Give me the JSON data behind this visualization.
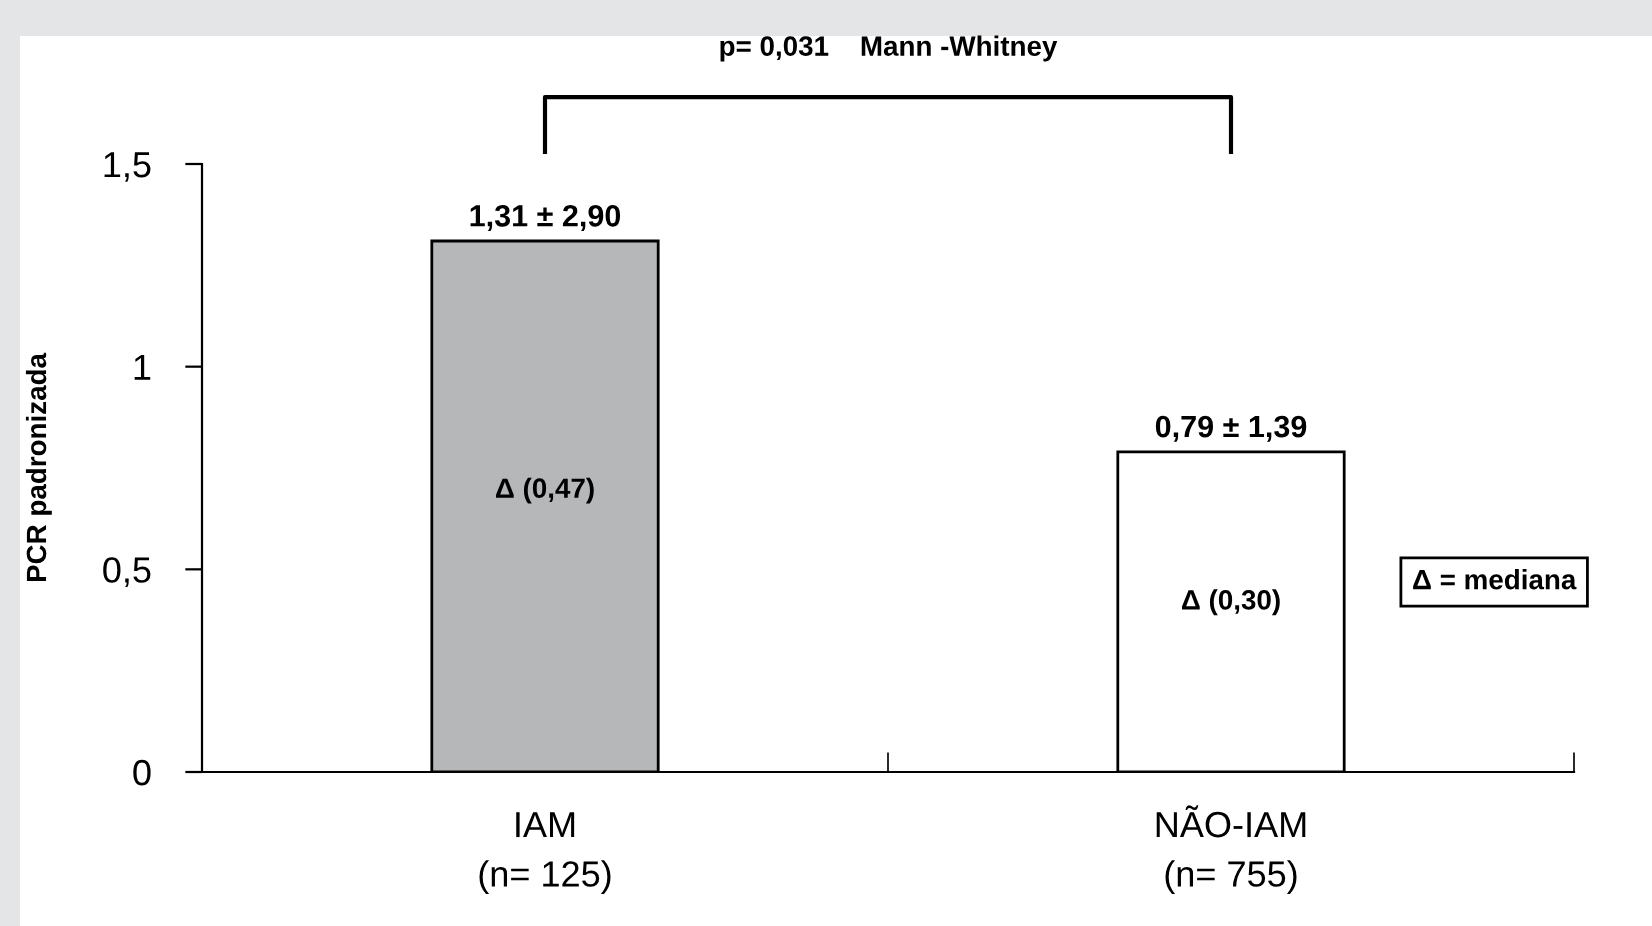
{
  "chart_data": {
    "type": "bar",
    "ylabel": "PCR padronizada",
    "categories": [
      "IAM\n(n= 125)",
      "NÃO-IAM\n(n= 755)"
    ],
    "values": [
      1.31,
      0.79
    ],
    "colors": [
      "#b5b7b9",
      "#ffffff"
    ],
    "value_labels": [
      "1,31 ± 2,90",
      "0,79 ± 1,39"
    ],
    "ylim": [
      0,
      1.5
    ],
    "yticks": [
      0,
      {
        "value": 0.5,
        "label": "0,5"
      },
      1,
      {
        "value": 1.5,
        "label": "1,5"
      }
    ],
    "grid": false,
    "legend": false,
    "annotations": [
      "p= 0,031    Mann -Whitney",
      "Δ (0,47)",
      "Δ (0,30)",
      "Δ = mediana"
    ]
  }
}
